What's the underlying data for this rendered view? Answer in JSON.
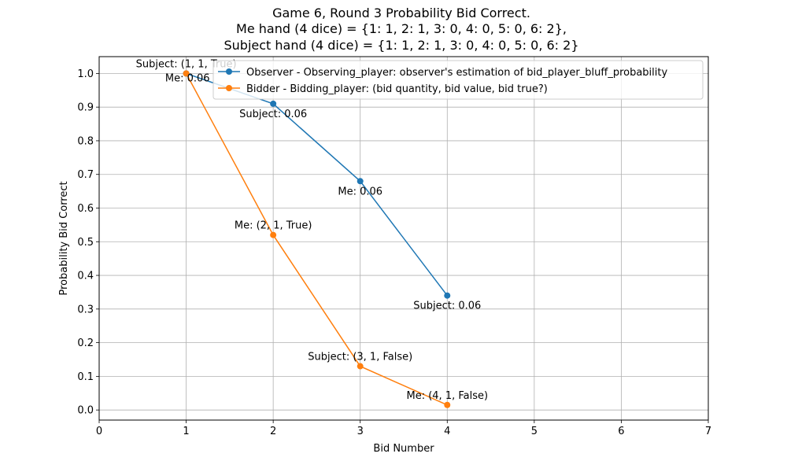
{
  "chart_data": {
    "type": "line",
    "title_lines": [
      "Game 6, Round 3 Probability Bid Correct.",
      "Me hand (4 dice) = {1: 1, 2: 1, 3: 0, 4: 0, 5: 0, 6: 2},",
      "Subject hand (4 dice) = {1: 1, 2: 1, 3: 0, 4: 0, 5: 0, 6: 2}"
    ],
    "xlabel": "Bid Number",
    "ylabel": "Probability Bid Correct",
    "xlim": [
      0,
      7
    ],
    "ylim": [
      -0.03,
      1.05
    ],
    "xticks": [
      0,
      1,
      2,
      3,
      4,
      5,
      6,
      7
    ],
    "yticks": [
      0.0,
      0.1,
      0.2,
      0.3,
      0.4,
      0.5,
      0.6,
      0.7,
      0.8,
      0.9,
      1.0
    ],
    "xtick_labels": [
      "0",
      "1",
      "2",
      "3",
      "4",
      "5",
      "6",
      "7"
    ],
    "ytick_labels": [
      "0.0",
      "0.1",
      "0.2",
      "0.3",
      "0.4",
      "0.5",
      "0.6",
      "0.7",
      "0.8",
      "0.9",
      "1.0"
    ],
    "grid": true,
    "legend_position": "top-right",
    "series": [
      {
        "name": "Observer - Observing_player: observer's estimation of bid_player_bluff_probability",
        "color": "#1f77b4",
        "x": [
          1,
          2,
          3,
          4
        ],
        "y": [
          1.0,
          0.91,
          0.68,
          0.34
        ],
        "labels": [
          "Me: 0.06",
          "Subject: 0.06",
          "Me: 0.06",
          "Subject: 0.06"
        ],
        "label_placement": [
          "left",
          "below",
          "below",
          "below"
        ]
      },
      {
        "name": "Bidder -  Bidding_player: (bid quantity, bid value, bid true?)",
        "color": "#ff7f0e",
        "x": [
          1,
          2,
          3,
          4
        ],
        "y": [
          1.0,
          0.52,
          0.13,
          0.015
        ],
        "labels": [
          "Subject: (1, 1, True)",
          "Me: (2, 1, True)",
          "Subject: (3, 1, False)",
          "Me: (4, 1, False)"
        ],
        "label_placement": [
          "above",
          "above",
          "above",
          "above"
        ]
      }
    ]
  }
}
